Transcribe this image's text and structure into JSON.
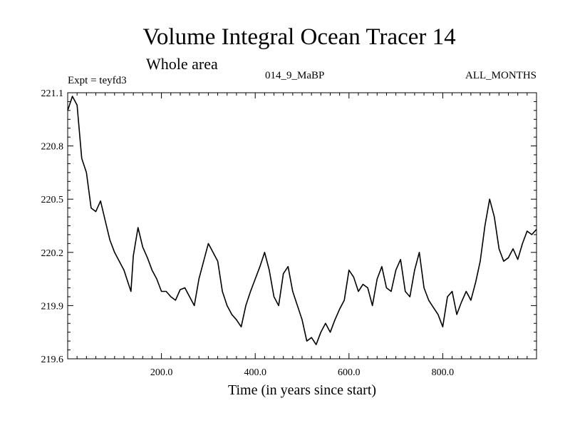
{
  "chart_data": {
    "type": "line",
    "title": "Volume Integral Ocean Tracer 14",
    "subtitle": "Whole area",
    "expt_label": "Expt = teyfd3",
    "run_label": "014_9_MaBP",
    "period_label": "ALL_MONTHS",
    "xlabel": "Time (in years since start)",
    "ylabel": "",
    "xlim": [
      0,
      1000
    ],
    "ylim": [
      219.6,
      221.1
    ],
    "x_ticks": [
      200,
      400,
      600,
      800
    ],
    "x_tick_labels": [
      "200.0",
      "400.0",
      "600.0",
      "800.0"
    ],
    "y_ticks": [
      219.6,
      219.9,
      220.2,
      220.5,
      220.8,
      221.1
    ],
    "y_tick_labels": [
      "219.6",
      "219.9",
      "220.2",
      "220.5",
      "220.8",
      "221.1"
    ],
    "grid": false,
    "series": [
      {
        "name": "Volume Integral Ocean Tracer 14",
        "x": [
          0,
          10,
          20,
          30,
          40,
          50,
          60,
          70,
          80,
          90,
          100,
          110,
          120,
          130,
          135,
          140,
          150,
          160,
          170,
          180,
          190,
          200,
          210,
          220,
          230,
          240,
          250,
          260,
          270,
          280,
          290,
          300,
          310,
          320,
          330,
          340,
          350,
          360,
          370,
          380,
          390,
          400,
          410,
          420,
          430,
          440,
          450,
          460,
          470,
          480,
          490,
          500,
          510,
          520,
          530,
          540,
          550,
          560,
          570,
          580,
          590,
          600,
          610,
          620,
          630,
          640,
          650,
          660,
          670,
          680,
          690,
          700,
          710,
          720,
          730,
          740,
          750,
          760,
          770,
          780,
          790,
          800,
          810,
          820,
          830,
          840,
          850,
          860,
          870,
          880,
          890,
          900,
          910,
          920,
          930,
          940,
          950,
          960,
          970,
          980,
          990,
          1000
        ],
        "y": [
          221.0,
          221.08,
          221.03,
          220.73,
          220.65,
          220.45,
          220.43,
          220.49,
          220.38,
          220.27,
          220.2,
          220.15,
          220.1,
          220.02,
          219.98,
          220.18,
          220.34,
          220.23,
          220.17,
          220.1,
          220.05,
          219.98,
          219.98,
          219.95,
          219.93,
          219.99,
          220.0,
          219.95,
          219.9,
          220.05,
          220.15,
          220.25,
          220.2,
          220.15,
          219.98,
          219.9,
          219.85,
          219.82,
          219.78,
          219.9,
          219.98,
          220.05,
          220.12,
          220.2,
          220.1,
          219.95,
          219.9,
          220.08,
          220.12,
          219.98,
          219.9,
          219.82,
          219.7,
          219.72,
          219.68,
          219.75,
          219.8,
          219.75,
          219.82,
          219.88,
          219.93,
          220.1,
          220.06,
          219.98,
          220.02,
          220.0,
          219.9,
          220.05,
          220.12,
          220.0,
          219.98,
          220.1,
          220.16,
          219.98,
          219.95,
          220.1,
          220.2,
          220.0,
          219.93,
          219.89,
          219.85,
          219.78,
          219.95,
          219.98,
          219.85,
          219.92,
          219.98,
          219.93,
          220.03,
          220.15,
          220.35,
          220.5,
          220.4,
          220.22,
          220.15,
          220.17,
          220.22,
          220.16,
          220.25,
          220.32,
          220.3,
          220.33
        ]
      }
    ]
  }
}
